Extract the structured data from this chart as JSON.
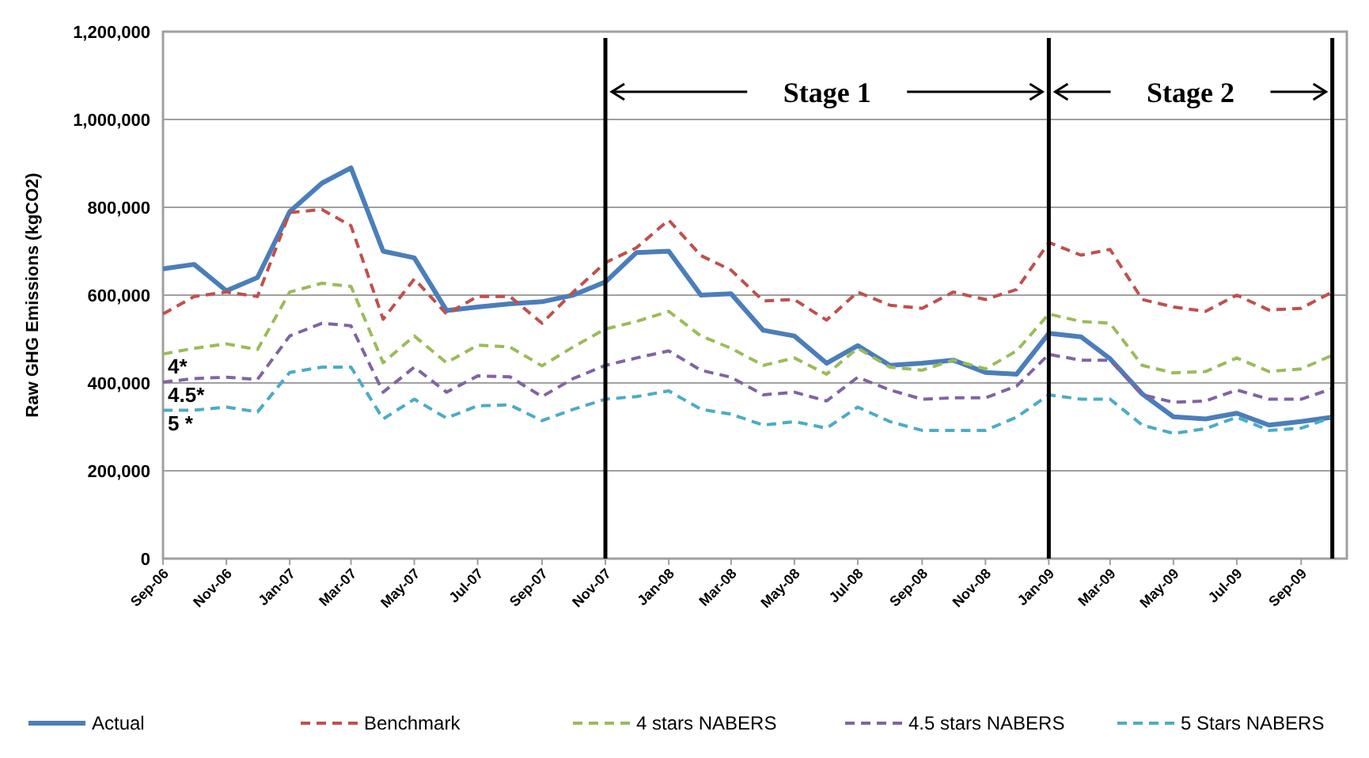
{
  "chart_data": {
    "type": "line",
    "ylabel": "Raw GHG Emissions (kgCO2)",
    "x": [
      "2006-09",
      "2006-10",
      "2006-11",
      "2006-12",
      "2007-01",
      "2007-02",
      "2007-03",
      "2007-04",
      "2007-05",
      "2007-06",
      "2007-07",
      "2007-08",
      "2007-09",
      "2007-10",
      "2007-11",
      "2007-12",
      "2008-01",
      "2008-02",
      "2008-03",
      "2008-04",
      "2008-05",
      "2008-06",
      "2008-07",
      "2008-08",
      "2008-09",
      "2008-10",
      "2008-11",
      "2008-12",
      "2009-01",
      "2009-02",
      "2009-03",
      "2009-04",
      "2009-05",
      "2009-06",
      "2009-07",
      "2009-08",
      "2009-09",
      "2009-10"
    ],
    "series": [
      {
        "name": "Actual",
        "color": "#4a7ebb",
        "line_style": "solid",
        "values": [
          660000,
          670000,
          610000,
          640000,
          790000,
          855000,
          890000,
          700000,
          685000,
          565000,
          573000,
          580000,
          585000,
          600000,
          630000,
          697000,
          700000,
          600000,
          603000,
          520000,
          507000,
          445000,
          485000,
          440000,
          445000,
          452000,
          424000,
          420000,
          513000,
          505000,
          455000,
          375000,
          323000,
          318000,
          331000,
          304000,
          312000,
          322000
        ]
      },
      {
        "name": "Benchmark",
        "color": "#c0504d",
        "line_style": "dashed",
        "values": [
          557000,
          597000,
          607000,
          597000,
          788000,
          795000,
          758000,
          545000,
          637000,
          557000,
          597000,
          597000,
          536000,
          607000,
          674000,
          708000,
          771000,
          690000,
          657000,
          587000,
          590000,
          543000,
          607000,
          577000,
          570000,
          607000,
          590000,
          613000,
          720000,
          691000,
          704000,
          590000,
          573000,
          563000,
          600000,
          566000,
          570000,
          607000
        ]
      },
      {
        "name": "4 stars NABERS",
        "color": "#9bbb59",
        "line_style": "dashed",
        "values": [
          466000,
          479000,
          489000,
          476000,
          607000,
          627000,
          620000,
          446000,
          507000,
          446000,
          486000,
          482000,
          439000,
          482000,
          523000,
          540000,
          563000,
          507000,
          479000,
          440000,
          457000,
          420000,
          479000,
          436000,
          429000,
          452000,
          432000,
          473000,
          557000,
          540000,
          536000,
          440000,
          423000,
          426000,
          457000,
          426000,
          432000,
          463000
        ]
      },
      {
        "name": "4.5 stars NABERS",
        "color": "#8064a2",
        "line_style": "dashed",
        "values": [
          402000,
          410000,
          413000,
          408000,
          507000,
          536000,
          530000,
          379000,
          436000,
          379000,
          416000,
          414000,
          369000,
          410000,
          440000,
          457000,
          473000,
          429000,
          413000,
          373000,
          379000,
          359000,
          413000,
          384000,
          363000,
          366000,
          366000,
          393000,
          465000,
          452000,
          452000,
          373000,
          356000,
          359000,
          384000,
          363000,
          363000,
          387000
        ]
      },
      {
        "name": "5 Stars NABERS",
        "color": "#4bacc6",
        "line_style": "dashed",
        "values": [
          338000,
          338000,
          345000,
          334000,
          424000,
          436000,
          436000,
          318000,
          363000,
          320000,
          348000,
          350000,
          314000,
          340000,
          363000,
          369000,
          382000,
          340000,
          329000,
          304000,
          312000,
          297000,
          345000,
          312000,
          292000,
          292000,
          292000,
          322000,
          373000,
          363000,
          363000,
          304000,
          285000,
          296000,
          322000,
          292000,
          297000,
          322000
        ]
      }
    ],
    "xlim": [
      "2006-09",
      "2009-10-15"
    ],
    "xticks": [
      {
        "value": "2006-09",
        "label": "Sep-06"
      },
      {
        "value": "2006-11",
        "label": "Nov-06"
      },
      {
        "value": "2007-01",
        "label": "Jan-07"
      },
      {
        "value": "2007-03",
        "label": "Mar-07"
      },
      {
        "value": "2007-05",
        "label": "May-07"
      },
      {
        "value": "2007-07",
        "label": "Jul-07"
      },
      {
        "value": "2007-09",
        "label": "Sep-07"
      },
      {
        "value": "2007-11",
        "label": "Nov-07"
      },
      {
        "value": "2008-01",
        "label": "Jan-08"
      },
      {
        "value": "2008-03",
        "label": "Mar-08"
      },
      {
        "value": "2008-05",
        "label": "May-08"
      },
      {
        "value": "2008-07",
        "label": "Jul-08"
      },
      {
        "value": "2008-09",
        "label": "Sep-08"
      },
      {
        "value": "2008-11",
        "label": "Nov-08"
      },
      {
        "value": "2009-01",
        "label": "Jan-09"
      },
      {
        "value": "2009-03",
        "label": "Mar-09"
      },
      {
        "value": "2009-05",
        "label": "May-09"
      },
      {
        "value": "2009-07",
        "label": "Jul-09"
      },
      {
        "value": "2009-09",
        "label": "Sep-09"
      }
    ],
    "ylim": [
      0,
      1200000
    ],
    "yticks": [
      0,
      {
        "value": 200000,
        "label": "200,000"
      },
      {
        "value": 400000,
        "label": "400,000"
      },
      {
        "value": 600000,
        "label": "600,000"
      },
      {
        "value": 800000,
        "label": "800,000"
      },
      {
        "value": 1000000,
        "label": "1,000,000"
      },
      {
        "value": 1200000,
        "label": "1,200,000"
      }
    ],
    "grid": "y",
    "legend": "bottom",
    "marker": "none",
    "ref_lines": [
      {
        "axis": "x",
        "value": "2007-11",
        "color": "#000000",
        "label": "Stage 1"
      },
      {
        "axis": "x",
        "value": "2009-01",
        "color": "#000000",
        "label": "Stage 2"
      },
      {
        "axis": "x",
        "value": "2009-10",
        "color": "#000000"
      }
    ],
    "annotations": [
      "4*",
      "4.5*",
      "5 *"
    ]
  }
}
